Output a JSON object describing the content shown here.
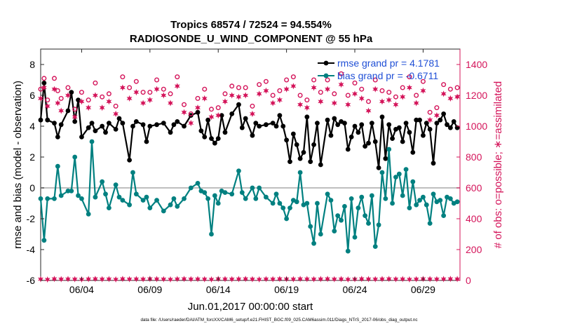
{
  "chart_data": {
    "type": "line",
    "title_line1": "Tropics 68574 / 72524 = 94.554%",
    "title_line2": "RADIOSONDE_U_WIND_COMPONENT @ 55 hPa",
    "xlabel": "Jun.01,2017 00:00:00 start",
    "ylabel_left": "rmse and bias (model - observation)",
    "ylabel_right": "# of obs: o=possible; ∗=assimilated",
    "footer": "data file: /Users/raeder/DAI/ATM_forcXX/CAM6_setup/f.e21.FHIST_BGC.f09_025.CAM6assim.011/Diags_NTrS_2017-06/obs_diag_output.nc",
    "x_range_days": [
      0,
      30.7
    ],
    "left_ylim": [
      -6,
      9
    ],
    "right_ylim": [
      0,
      1500
    ],
    "x_ticks": [
      {
        "day": 3,
        "label": "06/04"
      },
      {
        "day": 8,
        "label": "06/09"
      },
      {
        "day": 13,
        "label": "06/14"
      },
      {
        "day": 18,
        "label": "06/19"
      },
      {
        "day": 23,
        "label": "06/24"
      },
      {
        "day": 28,
        "label": "06/29"
      }
    ],
    "left_ticks": [
      {
        "value": 8,
        "label": "8"
      },
      {
        "value": 6,
        "label": "6"
      },
      {
        "value": 4,
        "label": "4"
      },
      {
        "value": 2,
        "label": "2"
      },
      {
        "value": 0,
        "label": "0"
      },
      {
        "value": -2,
        "label": "-2"
      },
      {
        "value": -4,
        "label": "-4"
      },
      {
        "value": -6,
        "label": "-6"
      }
    ],
    "right_ticks": [
      {
        "value": 1400,
        "label": "1400"
      },
      {
        "value": 1200,
        "label": "1200"
      },
      {
        "value": 1000,
        "label": "1000"
      },
      {
        "value": 800,
        "label": "800"
      },
      {
        "value": 600,
        "label": "600"
      },
      {
        "value": 400,
        "label": "400"
      },
      {
        "value": 200,
        "label": "200"
      },
      {
        "value": 0,
        "label": "0"
      }
    ],
    "zero_line": 0,
    "series": [
      {
        "name": "rmse",
        "legend_label": "rmse grand pr = 4.1781",
        "color": "#000000",
        "axis": "left",
        "x_days": [
          0.0,
          0.25,
          0.5,
          1.0,
          1.25,
          1.5,
          2.0,
          2.25,
          2.5,
          2.75,
          3.0,
          3.5,
          3.75,
          4.0,
          4.5,
          4.75,
          5.0,
          5.5,
          5.75,
          6.0,
          6.5,
          6.75,
          7.0,
          7.5,
          7.75,
          8.0,
          8.5,
          9.0,
          9.5,
          9.75,
          10.0,
          10.5,
          11.0,
          11.5,
          11.75,
          12.0,
          12.25,
          12.5,
          12.75,
          13.0,
          13.25,
          13.5,
          14.0,
          14.5,
          14.75,
          15.0,
          15.5,
          15.75,
          16.0,
          16.5,
          17.0,
          17.25,
          17.5,
          17.75,
          18.0,
          18.25,
          18.5,
          18.75,
          19.0,
          19.25,
          19.5,
          19.75,
          20.0,
          20.25,
          20.5,
          21.0,
          21.25,
          21.5,
          21.75,
          22.0,
          22.25,
          22.5,
          22.75,
          23.0,
          23.25,
          23.5,
          23.75,
          24.0,
          24.25,
          24.5,
          24.75,
          25.0,
          25.25,
          25.5,
          25.75,
          26.0,
          26.25,
          26.5,
          26.75,
          27.0,
          27.25,
          27.5,
          27.75,
          28.0,
          28.25,
          28.5,
          28.75,
          29.0,
          29.25,
          29.5,
          29.75,
          30.0,
          30.25,
          30.5
        ],
        "values": [
          4.4,
          6.8,
          4.4,
          4.2,
          3.3,
          4.1,
          5.0,
          6.2,
          4.3,
          5.7,
          3.3,
          3.9,
          4.2,
          3.7,
          4.0,
          3.6,
          4.2,
          3.8,
          4.5,
          4.2,
          1.8,
          4.0,
          4.3,
          4.1,
          3.0,
          4.0,
          4.1,
          4.2,
          3.6,
          4.1,
          4.3,
          4.0,
          4.7,
          4.9,
          3.7,
          3.3,
          4.4,
          3.2,
          2.9,
          3.2,
          4.7,
          3.6,
          4.8,
          5.4,
          3.9,
          4.5,
          3.4,
          4.2,
          4.0,
          4.1,
          4.2,
          4.0,
          4.7,
          4.0,
          3.1,
          1.7,
          3.5,
          2.8,
          1.9,
          2.3,
          4.6,
          1.7,
          2.8,
          4.2,
          1.5,
          4.4,
          3.4,
          4.5,
          4.1,
          4.3,
          4.2,
          2.5,
          3.3,
          4.0,
          3.6,
          4.1,
          2.7,
          2.9,
          4.2,
          3.0,
          1.3,
          4.6,
          1.9,
          4.1,
          3.2,
          3.8,
          3.9,
          3.0,
          4.2,
          3.6,
          2.3,
          4.4,
          4.4,
          3.4,
          4.2,
          3.8,
          1.6,
          4.2,
          4.4,
          4.8,
          4.1,
          3.9,
          4.3,
          3.9
        ]
      },
      {
        "name": "bias",
        "legend_label": "bias grand pr = -0.6711",
        "color": "#008080",
        "axis": "left",
        "x_days": [
          0.0,
          0.25,
          0.5,
          1.0,
          1.25,
          1.5,
          2.0,
          2.25,
          2.5,
          2.75,
          3.0,
          3.5,
          3.75,
          4.0,
          4.5,
          4.75,
          5.0,
          5.5,
          5.75,
          6.0,
          6.5,
          6.75,
          7.0,
          7.5,
          7.75,
          8.0,
          8.5,
          9.0,
          9.5,
          9.75,
          10.0,
          10.5,
          11.0,
          11.5,
          11.75,
          12.0,
          12.25,
          12.5,
          12.75,
          13.0,
          13.25,
          13.5,
          14.0,
          14.5,
          14.75,
          15.0,
          15.5,
          15.75,
          16.0,
          16.5,
          17.0,
          17.25,
          17.5,
          17.75,
          18.0,
          18.25,
          18.5,
          18.75,
          19.0,
          19.25,
          19.5,
          19.75,
          20.0,
          20.25,
          20.5,
          21.0,
          21.25,
          21.5,
          21.75,
          22.0,
          22.25,
          22.5,
          22.75,
          23.0,
          23.25,
          23.5,
          23.75,
          24.0,
          24.25,
          24.5,
          24.75,
          25.0,
          25.25,
          25.5,
          25.75,
          26.0,
          26.25,
          26.5,
          26.75,
          27.0,
          27.25,
          27.5,
          27.75,
          28.0,
          28.25,
          28.5,
          28.75,
          29.0,
          29.25,
          29.5,
          29.75,
          30.0,
          30.25,
          30.5
        ],
        "values": [
          -0.7,
          -3.4,
          -0.7,
          -0.7,
          1.4,
          -0.5,
          -0.2,
          -0.2,
          2.0,
          -0.5,
          -0.7,
          -1.7,
          3.0,
          -0.6,
          0.4,
          -0.4,
          -1.3,
          0.2,
          -0.6,
          -0.8,
          -1.1,
          1.0,
          -0.4,
          -0.8,
          -0.6,
          -1.3,
          -0.8,
          -1.5,
          -1.1,
          -0.7,
          -1.2,
          -0.7,
          0.0,
          0.3,
          -0.2,
          -0.3,
          -0.7,
          -3.0,
          -0.5,
          -1.0,
          -0.2,
          -0.3,
          -0.4,
          1.1,
          -0.3,
          -0.7,
          0.0,
          -0.7,
          0.0,
          -0.6,
          -1.0,
          -0.4,
          -1.0,
          -1.3,
          -2.0,
          -1.3,
          -0.8,
          -0.9,
          1.0,
          -1.1,
          -1.0,
          -2.5,
          -3.6,
          -1.0,
          -3.0,
          -0.4,
          -0.8,
          -2.8,
          -1.8,
          -2.1,
          -1.2,
          -4.1,
          -0.7,
          -3.2,
          -1.3,
          -0.6,
          -1.8,
          -2.3,
          -0.5,
          -3.8,
          -2.4,
          1.0,
          -0.7,
          2.5,
          -1.0,
          0.7,
          0.9,
          -0.5,
          1.2,
          -1.3,
          0.4,
          -1.1,
          -0.8,
          -0.6,
          -1.1,
          -2.3,
          -0.4,
          -0.9,
          -0.8,
          -1.8,
          -0.6,
          -0.7,
          -1.0,
          -0.9
        ]
      },
      {
        "name": "obs possible",
        "legend_label": "",
        "color": "#d4145a",
        "axis": "right",
        "marker": "circle",
        "x_days": [
          0.0,
          0.25,
          0.5,
          1.0,
          1.25,
          1.5,
          2.0,
          2.5,
          3.0,
          3.5,
          4.0,
          4.5,
          5.0,
          5.5,
          6.0,
          6.5,
          7.0,
          7.5,
          8.0,
          8.5,
          9.0,
          9.5,
          10.0,
          10.5,
          11.0,
          11.5,
          12.0,
          12.5,
          13.0,
          13.5,
          14.0,
          14.5,
          15.0,
          15.5,
          16.0,
          16.5,
          17.0,
          17.5,
          18.0,
          18.5,
          19.0,
          19.5,
          20.0,
          20.5,
          21.0,
          21.5,
          22.0,
          22.5,
          23.0,
          23.5,
          24.0,
          24.5,
          25.0,
          25.5,
          26.0,
          26.5,
          27.0,
          27.5,
          28.0,
          28.5,
          29.0,
          29.5,
          30.0,
          30.5
        ],
        "values": [
          1240,
          1310,
          1170,
          1310,
          1230,
          1180,
          1250,
          1110,
          1220,
          1170,
          1280,
          1190,
          1210,
          1130,
          1320,
          1250,
          1290,
          1220,
          1220,
          1300,
          1240,
          1210,
          1320,
          1140,
          1080,
          1180,
          1240,
          1110,
          1120,
          1210,
          1260,
          1250,
          1250,
          1130,
          1270,
          1290,
          1200,
          1230,
          1300,
          1320,
          1200,
          1170,
          1300,
          1220,
          1300,
          1210,
          1340,
          1200,
          1280,
          1240,
          1160,
          1300,
          1230,
          1220,
          1190,
          1250,
          1320,
          1200,
          1290,
          1090,
          1120,
          1270,
          1240,
          1250
        ]
      },
      {
        "name": "obs assimilated",
        "legend_label": "",
        "color": "#d4145a",
        "axis": "right",
        "marker": "star",
        "x_days": [
          0.0,
          0.25,
          0.5,
          1.0,
          1.25,
          1.5,
          2.0,
          2.5,
          3.0,
          3.5,
          4.0,
          4.5,
          5.0,
          5.5,
          6.0,
          6.5,
          7.0,
          7.5,
          8.0,
          8.5,
          9.0,
          9.5,
          10.0,
          10.5,
          11.0,
          11.5,
          12.0,
          12.5,
          13.0,
          13.5,
          14.0,
          14.5,
          15.0,
          15.5,
          16.0,
          16.5,
          17.0,
          17.5,
          18.0,
          18.5,
          19.0,
          19.5,
          20.0,
          20.5,
          21.0,
          21.5,
          22.0,
          22.5,
          23.0,
          23.5,
          24.0,
          24.5,
          25.0,
          25.5,
          26.0,
          26.5,
          27.0,
          27.5,
          28.0,
          28.5,
          29.0,
          29.5,
          30.0,
          30.5
        ],
        "values": [
          1180,
          1250,
          1130,
          1240,
          1150,
          1100,
          1200,
          1060,
          1160,
          1120,
          1200,
          1120,
          1160,
          1080,
          1250,
          1180,
          1220,
          1150,
          1170,
          1240,
          1200,
          1150,
          1260,
          1090,
          1020,
          1120,
          1180,
          1060,
          1070,
          1160,
          1200,
          1190,
          1200,
          1080,
          1210,
          1230,
          1150,
          1170,
          1240,
          1260,
          1140,
          1120,
          1250,
          1160,
          1240,
          1150,
          1270,
          1140,
          1210,
          1180,
          1100,
          1240,
          1160,
          1170,
          1140,
          1190,
          1250,
          1150,
          1230,
          1040,
          1070,
          1210,
          1180,
          1190
        ]
      },
      {
        "name": "obs count baseline",
        "legend_label": "",
        "color": "#d4145a",
        "axis": "right",
        "marker": "star",
        "x_days": [
          0.0,
          0.5,
          1.0,
          1.5,
          2.0,
          2.5,
          3.0,
          3.5,
          4.0,
          4.5,
          5.0,
          5.5,
          6.0,
          6.5,
          7.0,
          7.5,
          8.0,
          8.5,
          9.0,
          9.5,
          10.0,
          10.5,
          11.0,
          11.5,
          12.0,
          12.5,
          13.0,
          13.5,
          14.0,
          14.5,
          15.0,
          15.5,
          16.0,
          16.5,
          17.0,
          17.5,
          18.0,
          18.5,
          19.0,
          19.5,
          20.0,
          20.5,
          21.0,
          21.5,
          22.0,
          22.5,
          23.0,
          23.5,
          24.0,
          24.5,
          25.0,
          25.5,
          26.0,
          26.5,
          27.0,
          27.5,
          28.0,
          28.5,
          29.0,
          29.5,
          30.0,
          30.5
        ],
        "values": [
          8,
          6,
          10,
          8,
          9,
          8,
          7,
          9,
          10,
          8,
          9,
          7,
          10,
          8,
          9,
          8,
          10,
          9,
          8,
          7,
          9,
          10,
          8,
          9,
          8,
          7,
          10,
          9,
          8,
          9,
          10,
          8,
          7,
          9,
          8,
          10,
          9,
          8,
          10,
          9,
          8,
          9,
          10,
          8,
          9,
          7,
          8,
          10,
          9,
          8,
          9,
          10,
          8,
          9,
          7,
          8,
          10,
          9,
          8,
          9,
          10,
          9
        ]
      }
    ]
  }
}
